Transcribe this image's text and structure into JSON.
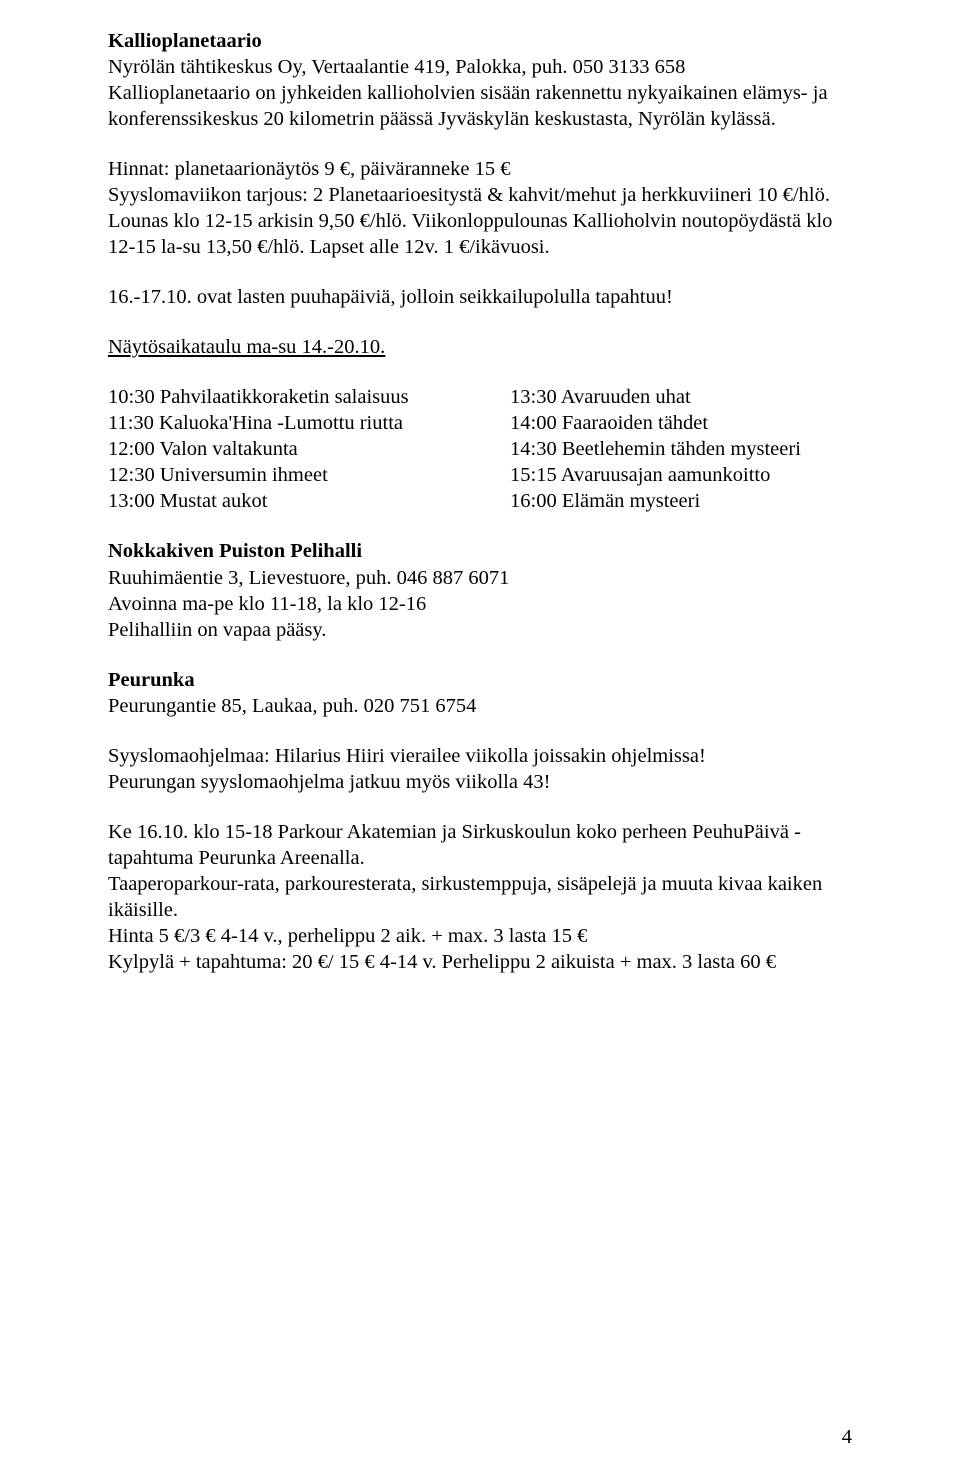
{
  "section1": {
    "title": "Kallioplanetaario",
    "addr": "Nyrölän tähtikeskus Oy, Vertaalantie 419, Palokka, puh. 050 3133 658",
    "desc": "Kallioplanetaario on jyhkeiden kallioholvien sisään rakennettu nykyaikainen elämys- ja konferenssikeskus 20 kilometrin päässä Jyväskylän keskustasta, Nyrölän kylässä."
  },
  "prices": {
    "l1": "Hinnat: planetaarionäytös 9 €, päiväranneke 15 €",
    "l2": "Syyslomaviikon tarjous: 2 Planetaarioesitystä & kahvit/mehut ja herkkuviineri 10 €/hlö.",
    "l3": "Lounas klo 12-15 arkisin 9,50 €/hlö. Viikonloppulounas Kallioholvin noutopöydästä klo 12-15 la-su 13,50 €/hlö. Lapset alle 12v. 1 €/ikävuosi."
  },
  "note": "16.-17.10. ovat lasten puuhapäiviä, jolloin seikkailupolulla tapahtuu!",
  "scheduleTitle": "Näytösaikataulu ma-su 14.-20.10.",
  "schedule": {
    "left": [
      "10:30 Pahvilaatikkoraketin salaisuus",
      "11:30 Kaluoka'Hina -Lumottu riutta",
      "12:00 Valon valtakunta",
      "12:30 Universumin ihmeet",
      "13:00 Mustat aukot"
    ],
    "right": [
      "13:30 Avaruuden uhat",
      "14:00 Faaraoiden tähdet",
      "14:30 Beetlehemin tähden mysteeri",
      "15:15 Avaruusajan aamunkoitto",
      "16:00 Elämän mysteeri"
    ]
  },
  "section2": {
    "title": "Nokkakiven Puiston Pelihalli",
    "l1": "Ruuhimäentie 3, Lievestuore, puh. 046 887 6071",
    "l2": "Avoinna ma-pe klo 11-18, la klo 12-16",
    "l3": "Pelihalliin on vapaa pääsy."
  },
  "section3": {
    "title": "Peurunka",
    "addr": "Peurungantie 85, Laukaa, puh. 020 751 6754",
    "l1": "Syyslomaohjelmaa: Hilarius Hiiri vierailee viikolla joissakin ohjelmissa!",
    "l2": "Peurungan syyslomaohjelma jatkuu myös viikolla 43!",
    "l3": "Ke 16.10. klo 15-18 Parkour Akatemian ja Sirkuskoulun koko perheen PeuhuPäivä -tapahtuma Peurunka Areenalla.",
    "l4": "Taaperoparkour-rata, parkouresterata, sirkustemppuja, sisäpelejä ja muuta kivaa kaiken ikäisille.",
    "l5": "Hinta 5 €/3 € 4-14 v., perhelippu 2 aik. + max. 3 lasta 15 €",
    "l6": "Kylpylä + tapahtuma: 20 €/ 15 € 4-14 v. Perhelippu 2 aikuista + max. 3 lasta 60 €"
  },
  "pageNumber": "4"
}
